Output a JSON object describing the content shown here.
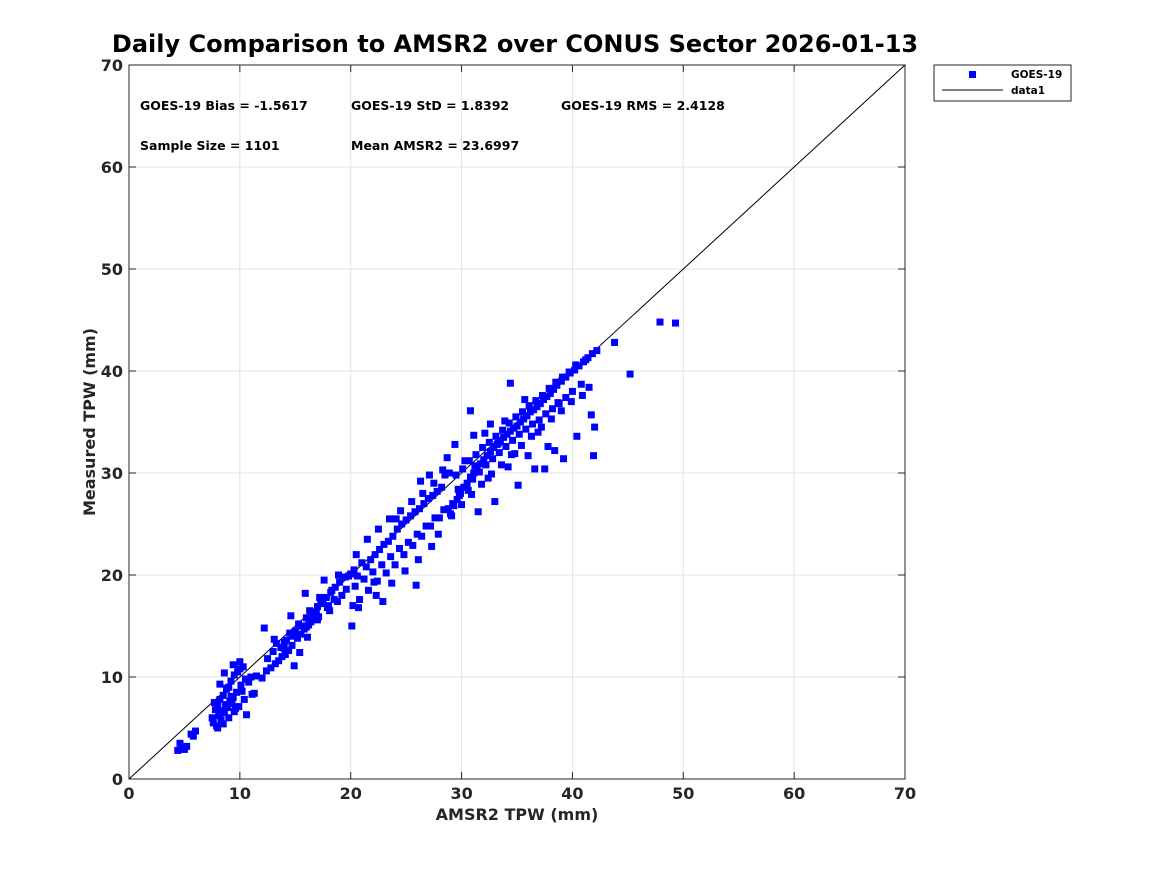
{
  "chart_data": {
    "type": "scatter",
    "title": "Daily Comparison to AMSR2 over CONUS Sector 2026-01-13",
    "xlabel": "AMSR2 TPW (mm)",
    "ylabel": "Measured TPW (mm)",
    "xlim": [
      0,
      70
    ],
    "ylim": [
      0,
      70
    ],
    "xticks": [
      "0",
      "10",
      "20",
      "30",
      "40",
      "50",
      "60",
      "70"
    ],
    "yticks": [
      "0",
      "10",
      "20",
      "30",
      "40",
      "50",
      "60",
      "70"
    ],
    "grid": true,
    "legend_position": "outside-top-right",
    "legend": [
      "GOES-19",
      "data1"
    ],
    "stats": {
      "bias": "GOES-19 Bias = -1.5617",
      "std": "GOES-19 StD = 1.8392",
      "rms": "GOES-19 RMS = 2.4128",
      "sample_size": "Sample Size = 1101",
      "mean": "Mean AMSR2 = 23.6997"
    },
    "series": [
      {
        "name": "GOES-19",
        "marker": "square",
        "color": "#0000ff",
        "x": [
          4.4,
          4.8,
          5.0,
          5.2,
          4.6,
          5.8,
          6.0,
          5.6,
          7.5,
          7.8,
          8.0,
          8.2,
          8.5,
          8.8,
          9.0,
          9.2,
          9.5,
          9.8,
          10.0,
          10.3,
          7.6,
          8.1,
          8.4,
          8.7,
          9.1,
          9.4,
          9.7,
          10.1,
          10.5,
          7.9,
          8.3,
          8.6,
          8.9,
          9.3,
          9.6,
          10.2,
          10.8,
          11.0,
          11.3,
          8.0,
          8.5,
          9.0,
          9.5,
          9.9,
          10.4,
          10.6,
          9.2,
          8.8,
          7.7,
          8.2,
          8.6,
          9.4,
          10.0,
          11.5,
          11.1,
          12.0,
          12.5,
          13.0,
          13.3,
          13.8,
          14.0,
          14.2,
          14.5,
          14.8,
          15.0,
          15.3,
          15.6,
          16.0,
          16.3,
          16.6,
          17.0,
          17.3,
          17.8,
          18.2,
          18.6,
          19.0,
          12.8,
          13.5,
          14.1,
          14.7,
          15.2,
          15.8,
          16.4,
          16.9,
          17.5,
          18.0,
          18.5,
          19.2,
          13.2,
          14.4,
          15.5,
          16.2,
          17.1,
          17.9,
          18.8,
          14.0,
          15.0,
          16.0,
          17.0,
          16.8,
          18.3,
          19.5,
          14.6,
          15.9,
          17.6,
          18.9,
          17.2,
          16.1,
          15.4,
          14.9,
          13.7,
          13.1,
          12.4,
          12.2,
          19.8,
          20.0,
          20.3,
          20.6,
          21.0,
          21.4,
          21.8,
          22.2,
          22.6,
          23.0,
          23.4,
          23.8,
          24.2,
          24.6,
          25.0,
          25.4,
          25.8,
          26.2,
          26.6,
          27.0,
          27.4,
          27.8,
          28.2,
          20.4,
          21.2,
          22.0,
          22.8,
          23.6,
          24.4,
          25.2,
          26.0,
          26.8,
          27.6,
          28.4,
          20.2,
          20.8,
          21.6,
          22.4,
          23.2,
          24.0,
          24.8,
          25.6,
          26.4,
          27.2,
          28.0,
          28.8,
          20.5,
          21.5,
          22.5,
          23.5,
          24.5,
          25.5,
          26.5,
          27.5,
          28.5,
          22.3,
          23.7,
          24.9,
          26.1,
          27.3,
          20.1,
          20.7,
          22.9,
          25.9,
          27.9,
          19.6,
          18.1,
          17.4,
          24.1,
          22.1,
          29.0,
          29.3,
          29.6,
          29.9,
          30.2,
          30.5,
          30.8,
          31.1,
          31.4,
          31.7,
          32.0,
          32.3,
          32.6,
          32.9,
          33.2,
          33.5,
          33.8,
          34.1,
          34.4,
          34.7,
          35.0,
          35.3,
          35.6,
          35.9,
          36.2,
          36.5,
          36.8,
          37.1,
          37.4,
          37.7,
          38.0,
          38.3,
          38.6,
          39.0,
          39.4,
          39.8,
          40.2,
          40.6,
          41.0,
          41.4,
          41.8,
          42.2,
          29.2,
          29.8,
          30.4,
          31.0,
          31.6,
          32.2,
          32.8,
          33.4,
          34.0,
          34.6,
          35.2,
          35.8,
          36.4,
          37.0,
          37.6,
          38.2,
          38.8,
          39.4,
          40.0,
          40.8,
          29.5,
          30.1,
          30.7,
          31.3,
          31.9,
          32.5,
          33.1,
          33.7,
          34.3,
          34.9,
          35.5,
          36.1,
          36.7,
          37.3,
          37.9,
          38.5,
          39.1,
          39.7,
          40.3,
          41.2,
          29.1,
          30.0,
          30.9,
          31.8,
          32.7,
          33.6,
          34.5,
          35.4,
          36.3,
          37.2,
          38.1,
          39.0,
          39.9,
          41.5,
          30.6,
          32.4,
          34.2,
          36.0,
          37.8,
          28.7,
          28.3,
          27.1,
          26.3,
          31.5,
          33.0,
          35.1,
          36.6,
          38.4,
          40.4,
          42.0,
          43.8,
          45.2,
          47.9,
          49.3,
          41.7,
          40.9,
          39.2,
          41.9,
          37.5,
          34.8,
          33.3,
          30.3,
          28.9,
          29.7,
          31.2,
          32.1,
          33.9,
          35.7,
          36.9,
          38.7,
          34.4,
          32.6,
          31.1,
          30.8,
          29.4
        ],
        "y": [
          2.8,
          3.0,
          2.9,
          3.2,
          3.5,
          4.2,
          4.7,
          4.4,
          6.0,
          6.8,
          7.2,
          7.8,
          8.2,
          8.8,
          9.0,
          9.6,
          10.2,
          10.5,
          10.8,
          11.0,
          5.5,
          6.2,
          6.7,
          7.3,
          7.6,
          8.0,
          8.5,
          9.2,
          9.8,
          5.2,
          5.8,
          6.5,
          7.0,
          7.4,
          6.9,
          8.6,
          9.5,
          10.0,
          8.4,
          5.0,
          5.4,
          6.0,
          6.6,
          7.1,
          7.8,
          6.3,
          8.1,
          8.9,
          7.5,
          9.3,
          10.4,
          11.2,
          11.5,
          10.1,
          8.3,
          9.9,
          11.8,
          12.5,
          13.3,
          12.0,
          12.8,
          13.6,
          14.3,
          14.0,
          14.5,
          15.2,
          15.0,
          15.8,
          16.5,
          16.0,
          16.9,
          17.5,
          17.8,
          18.3,
          18.8,
          19.3,
          10.9,
          11.6,
          12.2,
          13.1,
          13.8,
          14.7,
          15.4,
          16.3,
          17.2,
          17.0,
          17.6,
          18.0,
          11.3,
          12.6,
          14.2,
          15.1,
          15.9,
          16.8,
          17.4,
          13.4,
          14.1,
          14.9,
          15.6,
          16.2,
          18.5,
          19.8,
          16.0,
          18.2,
          19.5,
          20.0,
          17.8,
          13.9,
          12.4,
          11.1,
          12.9,
          13.7,
          10.6,
          14.8,
          19.9,
          20.1,
          20.5,
          19.9,
          21.2,
          20.8,
          21.5,
          22.0,
          22.5,
          23.0,
          23.3,
          23.8,
          24.5,
          25.0,
          25.4,
          25.8,
          26.2,
          26.5,
          27.0,
          27.5,
          27.8,
          28.2,
          28.6,
          18.9,
          19.6,
          20.3,
          21.0,
          21.8,
          22.6,
          23.2,
          24.0,
          24.8,
          25.6,
          26.4,
          17.0,
          17.6,
          18.5,
          19.4,
          20.2,
          21.0,
          22.0,
          22.9,
          23.8,
          24.8,
          25.6,
          26.5,
          22.0,
          23.5,
          24.5,
          25.5,
          26.3,
          27.2,
          28.0,
          29.0,
          29.8,
          18.0,
          19.2,
          20.4,
          21.5,
          22.8,
          15.0,
          16.8,
          17.4,
          19.0,
          24.0,
          18.6,
          16.5,
          17.2,
          25.5,
          19.3,
          26.0,
          26.8,
          27.4,
          28.0,
          28.6,
          29.0,
          29.6,
          30.0,
          30.4,
          30.9,
          31.3,
          31.7,
          32.1,
          32.5,
          32.8,
          33.1,
          33.5,
          33.8,
          34.1,
          34.4,
          34.6,
          35.0,
          35.3,
          35.6,
          36.0,
          36.2,
          36.5,
          36.8,
          37.2,
          37.5,
          37.8,
          38.2,
          38.6,
          39.0,
          39.4,
          39.8,
          40.1,
          40.5,
          40.9,
          41.3,
          41.7,
          42.0,
          27.0,
          27.8,
          28.6,
          29.4,
          30.1,
          30.8,
          31.4,
          32.0,
          32.6,
          33.2,
          33.8,
          34.3,
          34.8,
          35.2,
          35.8,
          36.3,
          36.8,
          37.4,
          38.0,
          38.7,
          29.8,
          30.4,
          31.2,
          31.8,
          32.5,
          33.0,
          33.6,
          34.2,
          34.9,
          35.5,
          36.0,
          36.6,
          37.1,
          37.6,
          38.3,
          38.9,
          39.4,
          39.9,
          40.6,
          41.1,
          25.8,
          26.9,
          27.9,
          28.9,
          29.9,
          30.8,
          31.8,
          32.7,
          33.6,
          34.5,
          35.3,
          36.1,
          37.0,
          38.4,
          28.3,
          29.5,
          30.6,
          31.7,
          32.6,
          31.5,
          30.3,
          29.8,
          29.2,
          26.2,
          27.2,
          28.8,
          30.4,
          32.2,
          33.6,
          34.5,
          42.8,
          39.7,
          44.8,
          44.7,
          35.7,
          37.6,
          31.4,
          31.7,
          30.4,
          31.9,
          32.9,
          31.2,
          30.0,
          28.4,
          30.7,
          33.9,
          35.1,
          37.2,
          34.0,
          36.9,
          38.8,
          34.8,
          33.7,
          36.1,
          32.8
        ]
      },
      {
        "name": "data1",
        "type": "line",
        "color": "#000000",
        "x": [
          0,
          70
        ],
        "y": [
          0,
          70
        ]
      }
    ]
  }
}
